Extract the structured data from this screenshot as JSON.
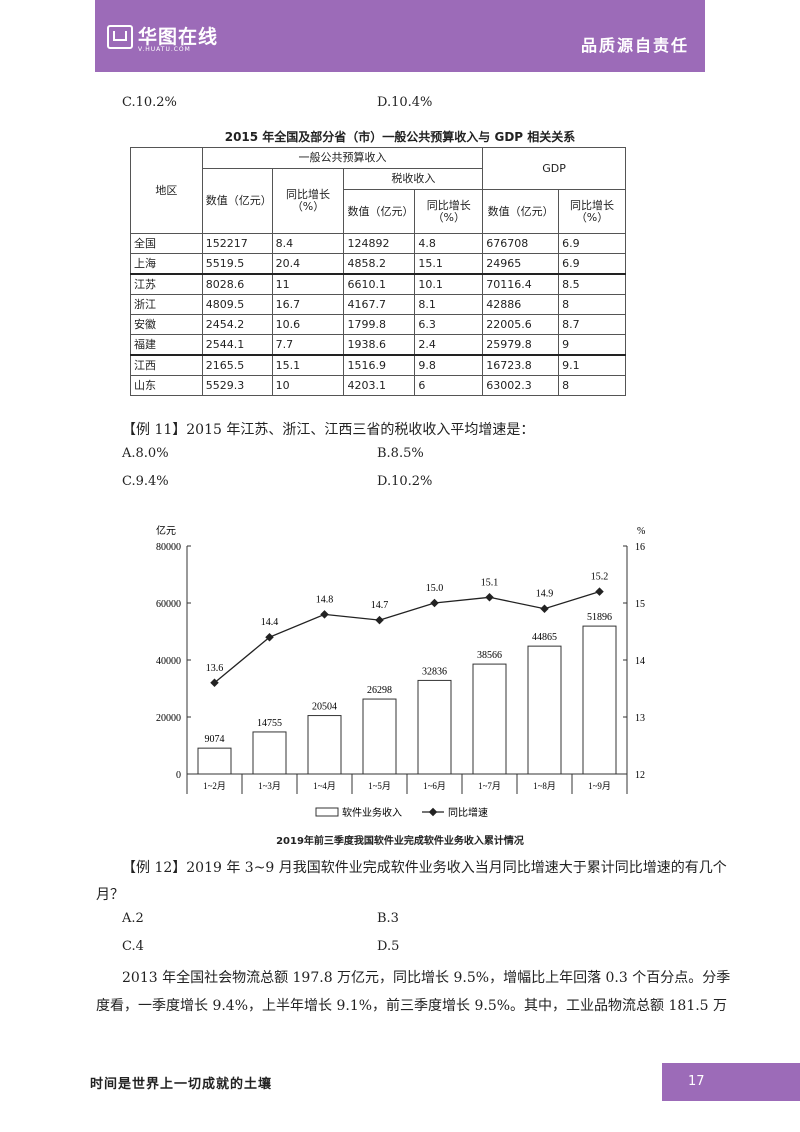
{
  "header": {
    "brand": "华图在线",
    "url": "V.HUATU.COM",
    "slogan": "品质源自责任"
  },
  "prev_options": {
    "c": "C.10.2%",
    "d": "D.10.4%"
  },
  "table": {
    "title": "2015 年全国及部分省（市）一般公共预算收入与 GDP 相关关系",
    "h_region": "地区",
    "h_budget": "一般公共预算收入",
    "h_tax": "税收收入",
    "h_gdp": "GDP",
    "h_value": "数值（亿元）",
    "h_growth": "同比增长（%）",
    "rows": [
      [
        "全国",
        "152217",
        "8.4",
        "124892",
        "4.8",
        "676708",
        "6.9"
      ],
      [
        "上海",
        "5519.5",
        "20.4",
        "4858.2",
        "15.1",
        "24965",
        "6.9"
      ],
      [
        "江苏",
        "8028.6",
        "11",
        "6610.1",
        "10.1",
        "70116.4",
        "8.5"
      ],
      [
        "浙江",
        "4809.5",
        "16.7",
        "4167.7",
        "8.1",
        "42886",
        "8"
      ],
      [
        "安徽",
        "2454.2",
        "10.6",
        "1799.8",
        "6.3",
        "22005.6",
        "8.7"
      ],
      [
        "福建",
        "2544.1",
        "7.7",
        "1938.6",
        "2.4",
        "25979.8",
        "9"
      ],
      [
        "江西",
        "2165.5",
        "15.1",
        "1516.9",
        "9.8",
        "16723.8",
        "9.1"
      ],
      [
        "山东",
        "5529.3",
        "10",
        "4203.1",
        "6",
        "63002.3",
        "8"
      ]
    ]
  },
  "q11": {
    "text": "【例 11】2015 年江苏、浙江、江西三省的税收收入平均增速是：",
    "a": "A.8.0%",
    "b": "B.8.5%",
    "c": "C.9.4%",
    "d": "D.10.2%"
  },
  "chart_data": {
    "type": "bar",
    "title": "2019年前三季度我国软件业完成软件业务收入累计情况",
    "categories": [
      "1~2月",
      "1~3月",
      "1~4月",
      "1~5月",
      "1~6月",
      "1~7月",
      "1~8月",
      "1~9月"
    ],
    "ylabel_left": "亿元",
    "ylabel_right": "%",
    "ylim_left": [
      0,
      80000
    ],
    "ylim_right": [
      12,
      16
    ],
    "yticks_left": [
      "0",
      "20000",
      "40000",
      "60000",
      "80000"
    ],
    "yticks_right": [
      "12",
      "13",
      "14",
      "15",
      "16"
    ],
    "series": [
      {
        "name": "软件业务收入",
        "type": "bar",
        "axis": "left",
        "values": [
          9074,
          14755,
          20504,
          26298,
          32836,
          38566,
          44865,
          51896
        ]
      },
      {
        "name": "同比增速",
        "type": "line",
        "axis": "right",
        "values": [
          13.6,
          14.4,
          14.8,
          14.7,
          15.0,
          15.1,
          14.9,
          15.2
        ]
      }
    ],
    "bar_labels": [
      "9074",
      "14755",
      "20504",
      "26298",
      "32836",
      "38566",
      "44865",
      "51896"
    ],
    "line_labels": [
      "13.6",
      "14.4",
      "14.8",
      "14.7",
      "15.0",
      "15.1",
      "14.9",
      "15.2"
    ],
    "legend": [
      "软件业务收入",
      "同比增速"
    ],
    "legend_position": "bottom"
  },
  "q12": {
    "line1": "【例 12】2019 年 3~9 月我国软件业完成软件业务收入当月同比增速大于累计同比增速的有几个",
    "line2": "月？",
    "a": "A.2",
    "b": "B.3",
    "c": "C.4",
    "d": "D.5"
  },
  "passage": {
    "line1": "2013 年全国社会物流总额 197.8 万亿元，同比增长 9.5%，增幅比上年回落 0.3 个百分点。分季",
    "line2": "度看，一季度增长 9.4%，上半年增长 9.1%，前三季度增长 9.5%。其中，工业品物流总额 181.5 万"
  },
  "footer": {
    "motto": "时间是世界上一切成就的土壤",
    "page": "17"
  }
}
